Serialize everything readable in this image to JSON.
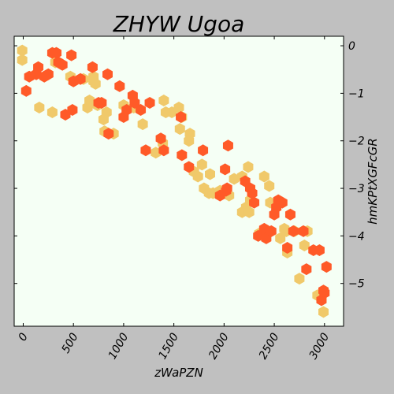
{
  "chart_data": {
    "type": "scatter",
    "title": "ZHYW Ugoa",
    "xlabel": "zWaPZN",
    "ylabel": "hmKPtXGFcGR",
    "xlim": [
      -90,
      3190
    ],
    "ylim": [
      -5.9,
      0.2
    ],
    "xticks": [
      0,
      500,
      1000,
      1500,
      2000,
      2500,
      3000
    ],
    "yticks": [
      0,
      -1,
      -2,
      -3,
      -4,
      -5
    ],
    "grid": false,
    "legend": "none",
    "y_axis_side": "right",
    "marker": "hexagon",
    "background": "#f5fff5",
    "series": [
      {
        "color": "#f0c96a",
        "points": [
          [
            -10,
            -0.3
          ],
          [
            -10,
            -0.1
          ],
          [
            160,
            -1.3
          ],
          [
            320,
            -0.35
          ],
          [
            290,
            -1.4
          ],
          [
            470,
            -0.65
          ],
          [
            600,
            -0.7
          ],
          [
            640,
            -1.3
          ],
          [
            660,
            -1.15
          ],
          [
            700,
            -0.65
          ],
          [
            700,
            -0.75
          ],
          [
            720,
            -0.8
          ],
          [
            740,
            -1.25
          ],
          [
            800,
            -1.55
          ],
          [
            810,
            -1.8
          ],
          [
            830,
            -1.4
          ],
          [
            900,
            -1.85
          ],
          [
            1000,
            -1.25
          ],
          [
            1100,
            -1.3
          ],
          [
            1190,
            -1.65
          ],
          [
            1320,
            -2.25
          ],
          [
            1390,
            -2.05
          ],
          [
            1400,
            -1.15
          ],
          [
            1420,
            -1.4
          ],
          [
            1480,
            -1.4
          ],
          [
            1550,
            -1.3
          ],
          [
            1560,
            -1.75
          ],
          [
            1580,
            -1.5
          ],
          [
            1650,
            -2.0
          ],
          [
            1660,
            -1.85
          ],
          [
            1700,
            -2.65
          ],
          [
            1740,
            -2.75
          ],
          [
            1780,
            -2.5
          ],
          [
            1800,
            -3.0
          ],
          [
            1850,
            -3.1
          ],
          [
            1860,
            -2.7
          ],
          [
            1890,
            -3.1
          ],
          [
            1960,
            -3.05
          ],
          [
            2050,
            -3.15
          ],
          [
            2100,
            -2.8
          ],
          [
            2180,
            -2.75
          ],
          [
            2180,
            -3.5
          ],
          [
            2220,
            -3.4
          ],
          [
            2240,
            -2.55
          ],
          [
            2250,
            -3.5
          ],
          [
            2260,
            -3.25
          ],
          [
            2350,
            -3.95
          ],
          [
            2400,
            -2.75
          ],
          [
            2450,
            -2.95
          ],
          [
            2460,
            -3.3
          ],
          [
            2560,
            -4.05
          ],
          [
            2600,
            -3.85
          ],
          [
            2620,
            -3.9
          ],
          [
            2630,
            -4.35
          ],
          [
            2700,
            -3.9
          ],
          [
            2750,
            -4.9
          ],
          [
            2800,
            -4.2
          ],
          [
            2830,
            -3.9
          ],
          [
            2930,
            -5.25
          ],
          [
            2990,
            -5.6
          ]
        ]
      },
      {
        "color": "#ff5a28",
        "points": [
          [
            30,
            -0.95
          ],
          [
            60,
            -0.65
          ],
          [
            130,
            -0.6
          ],
          [
            150,
            -0.45
          ],
          [
            210,
            -0.65
          ],
          [
            250,
            -0.6
          ],
          [
            290,
            -0.15
          ],
          [
            330,
            -0.15
          ],
          [
            350,
            -0.35
          ],
          [
            390,
            -0.4
          ],
          [
            420,
            -1.45
          ],
          [
            480,
            -0.2
          ],
          [
            490,
            -1.35
          ],
          [
            500,
            -0.75
          ],
          [
            570,
            -0.7
          ],
          [
            690,
            -0.45
          ],
          [
            750,
            -1.2
          ],
          [
            780,
            -1.2
          ],
          [
            840,
            -0.6
          ],
          [
            850,
            -1.85
          ],
          [
            960,
            -0.85
          ],
          [
            1000,
            -1.5
          ],
          [
            1030,
            -1.35
          ],
          [
            1090,
            -1.05
          ],
          [
            1110,
            -1.2
          ],
          [
            1170,
            -1.35
          ],
          [
            1220,
            -2.2
          ],
          [
            1260,
            -1.2
          ],
          [
            1370,
            -1.95
          ],
          [
            1400,
            -2.2
          ],
          [
            1570,
            -1.5
          ],
          [
            1580,
            -2.3
          ],
          [
            1650,
            -2.55
          ],
          [
            1790,
            -2.2
          ],
          [
            1960,
            -3.15
          ],
          [
            2010,
            -2.6
          ],
          [
            2020,
            -3.05
          ],
          [
            2030,
            -3.0
          ],
          [
            2040,
            -2.1
          ],
          [
            2210,
            -2.85
          ],
          [
            2260,
            -3.0
          ],
          [
            2280,
            -3.1
          ],
          [
            2300,
            -3.3
          ],
          [
            2340,
            -4.0
          ],
          [
            2400,
            -3.85
          ],
          [
            2420,
            -4.05
          ],
          [
            2470,
            -3.9
          ],
          [
            2500,
            -3.55
          ],
          [
            2520,
            -3.4
          ],
          [
            2540,
            -3.25
          ],
          [
            2580,
            -3.3
          ],
          [
            2630,
            -4.25
          ],
          [
            2660,
            -3.55
          ],
          [
            2690,
            -3.9
          ],
          [
            2790,
            -3.9
          ],
          [
            2820,
            -4.7
          ],
          [
            2890,
            -4.3
          ],
          [
            2950,
            -4.3
          ],
          [
            2970,
            -5.35
          ],
          [
            2990,
            -5.15
          ],
          [
            3000,
            -5.2
          ],
          [
            3020,
            -4.65
          ]
        ]
      }
    ]
  }
}
